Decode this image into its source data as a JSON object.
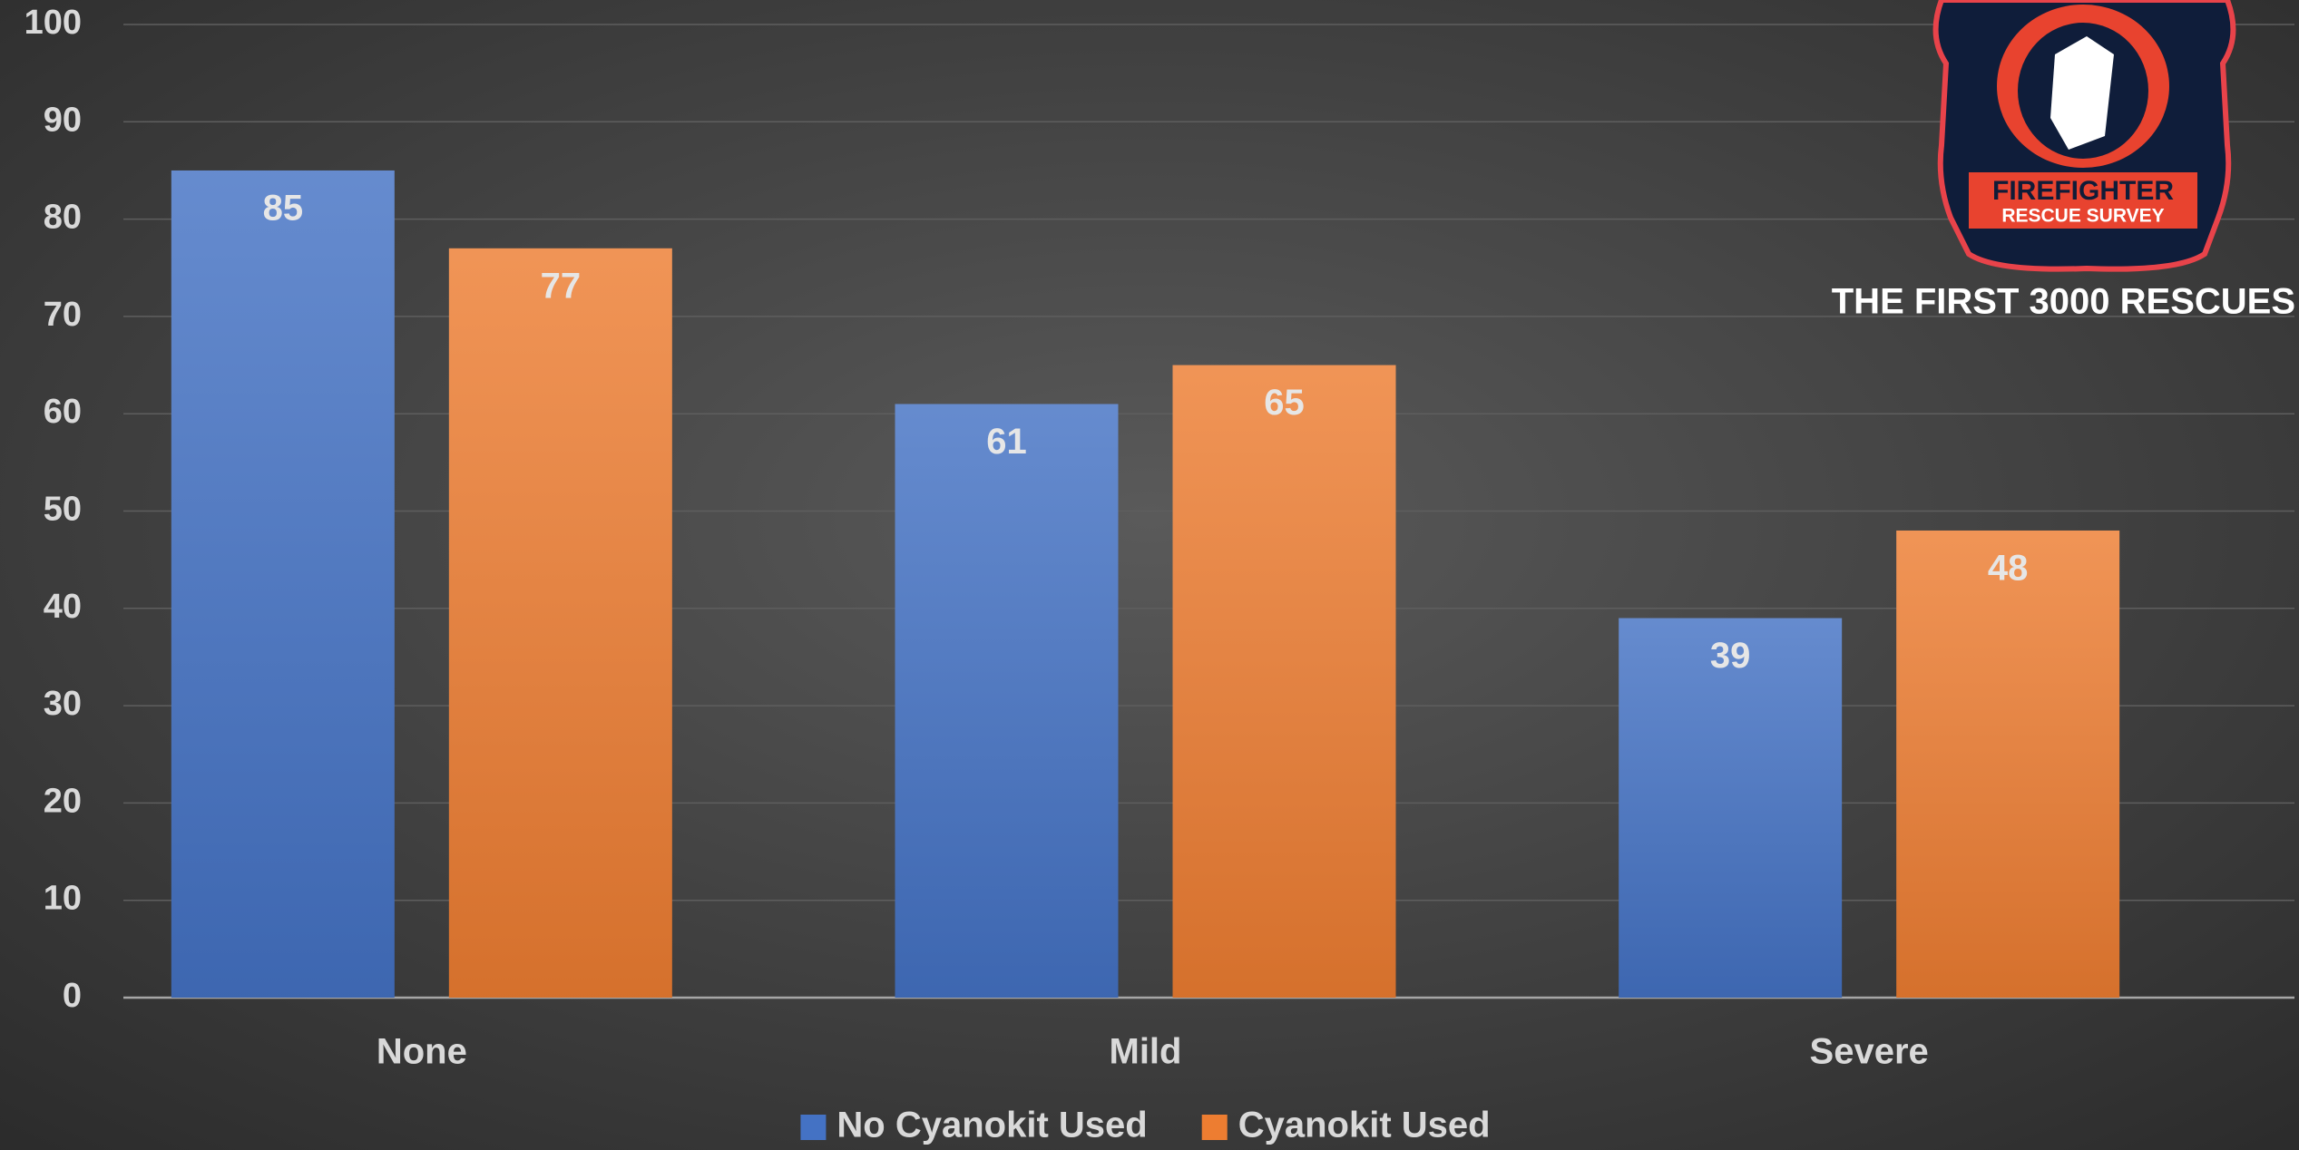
{
  "chart_data": {
    "type": "bar",
    "categories": [
      "None",
      "Mild",
      "Severe"
    ],
    "series": [
      {
        "name": "No Cyanokit Used",
        "color": "#4472c4",
        "values": [
          85,
          61,
          39
        ]
      },
      {
        "name": "Cyanokit Used",
        "color": "#ed7d31",
        "values": [
          77,
          65,
          48
        ]
      }
    ],
    "ylim": [
      0,
      100
    ],
    "yticks": [
      0,
      10,
      20,
      30,
      40,
      50,
      60,
      70,
      80,
      90,
      100
    ],
    "grid": true,
    "legend": "bottom",
    "annotations": [
      "FIREFIGHTER",
      "RESCUE SURVEY",
      "THE FIRST 3000 RESCUES"
    ]
  }
}
